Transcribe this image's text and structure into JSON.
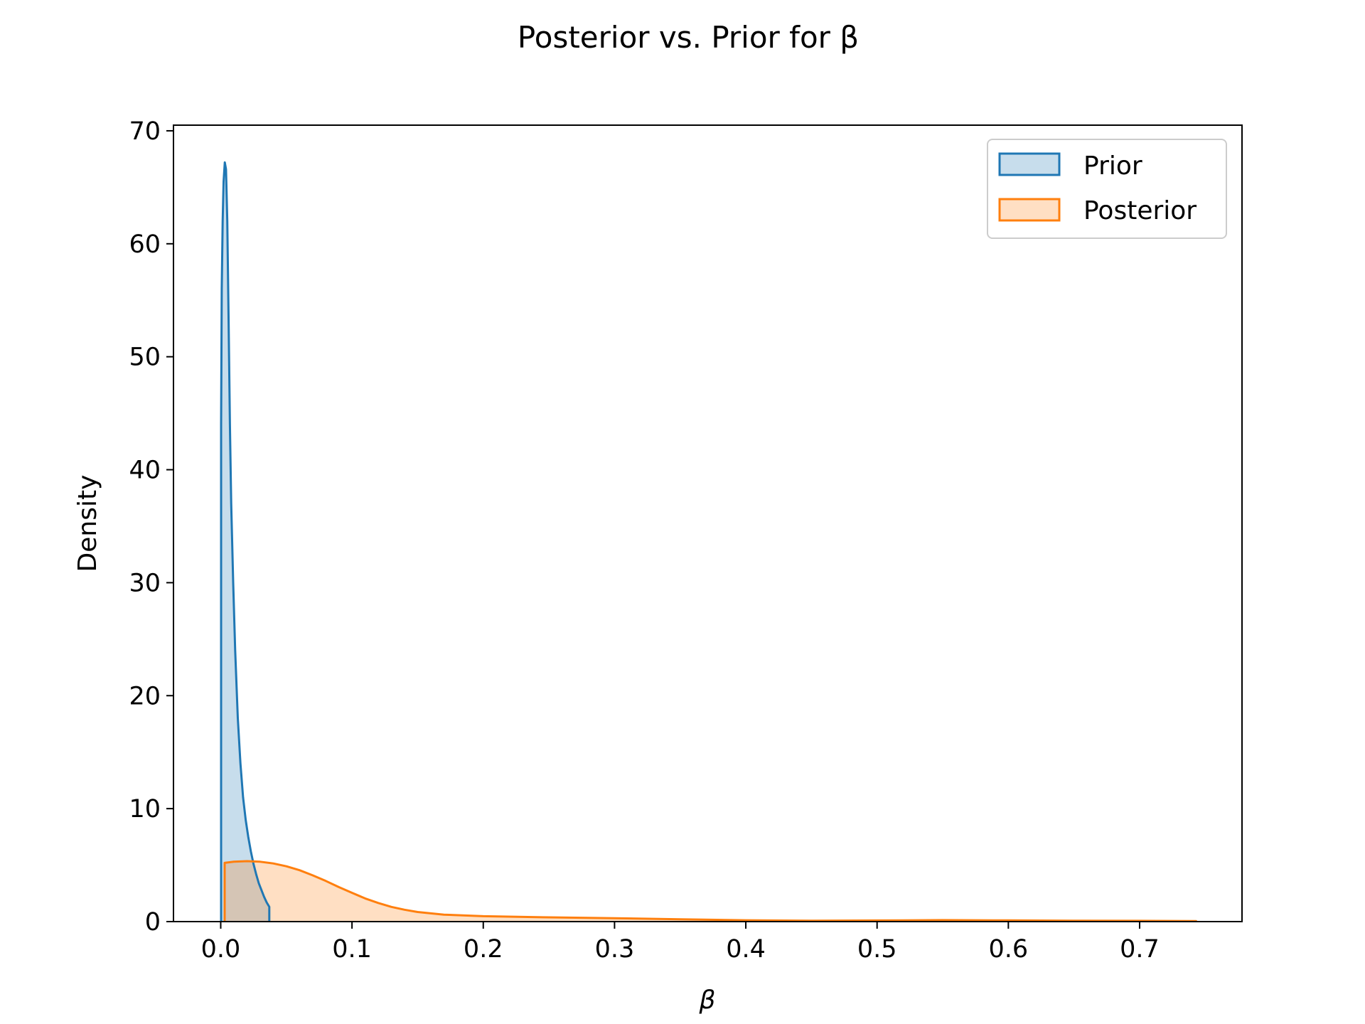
{
  "chart_data": {
    "type": "area",
    "title": "Posterior vs. Prior for β",
    "xlabel": "β",
    "ylabel": "Density",
    "xlim": [
      -0.036,
      0.778
    ],
    "ylim": [
      0,
      70.5
    ],
    "x_ticks": [
      "0.0",
      "0.1",
      "0.2",
      "0.3",
      "0.4",
      "0.5",
      "0.6",
      "0.7"
    ],
    "y_ticks": [
      "0",
      "10",
      "20",
      "30",
      "40",
      "50",
      "60",
      "70"
    ],
    "grid": false,
    "legend_position": "top-right",
    "series": [
      {
        "name": "Prior",
        "color": "#1f77b4",
        "fill_color": "#1f77b4",
        "fill_opacity": 0.25,
        "points": [
          [
            0.0003,
            0
          ],
          [
            0.0003,
            44
          ],
          [
            0.0008,
            56
          ],
          [
            0.0015,
            62
          ],
          [
            0.0022,
            65.5
          ],
          [
            0.0031,
            67.2
          ],
          [
            0.004,
            66.6
          ],
          [
            0.005,
            62
          ],
          [
            0.006,
            53
          ],
          [
            0.007,
            44
          ],
          [
            0.008,
            37
          ],
          [
            0.0095,
            30
          ],
          [
            0.011,
            24
          ],
          [
            0.013,
            18
          ],
          [
            0.015,
            14
          ],
          [
            0.017,
            11
          ],
          [
            0.019,
            9
          ],
          [
            0.021,
            7.5
          ],
          [
            0.023,
            6.2
          ],
          [
            0.025,
            5.1
          ],
          [
            0.027,
            4.2
          ],
          [
            0.029,
            3.4
          ],
          [
            0.031,
            2.8
          ],
          [
            0.033,
            2.2
          ],
          [
            0.035,
            1.7
          ],
          [
            0.037,
            1.3
          ],
          [
            0.037,
            0
          ]
        ]
      },
      {
        "name": "Posterior",
        "color": "#ff7f0e",
        "fill_color": "#ff7f0e",
        "fill_opacity": 0.25,
        "points": [
          [
            0.003,
            0
          ],
          [
            0.003,
            5.2
          ],
          [
            0.01,
            5.3
          ],
          [
            0.02,
            5.35
          ],
          [
            0.03,
            5.3
          ],
          [
            0.04,
            5.15
          ],
          [
            0.05,
            4.9
          ],
          [
            0.06,
            4.55
          ],
          [
            0.07,
            4.1
          ],
          [
            0.08,
            3.6
          ],
          [
            0.09,
            3.05
          ],
          [
            0.1,
            2.55
          ],
          [
            0.11,
            2.05
          ],
          [
            0.12,
            1.65
          ],
          [
            0.13,
            1.3
          ],
          [
            0.14,
            1.05
          ],
          [
            0.15,
            0.85
          ],
          [
            0.17,
            0.62
          ],
          [
            0.2,
            0.48
          ],
          [
            0.25,
            0.38
          ],
          [
            0.3,
            0.3
          ],
          [
            0.35,
            0.2
          ],
          [
            0.4,
            0.12
          ],
          [
            0.45,
            0.08
          ],
          [
            0.5,
            0.1
          ],
          [
            0.55,
            0.13
          ],
          [
            0.6,
            0.11
          ],
          [
            0.65,
            0.08
          ],
          [
            0.7,
            0.07
          ],
          [
            0.743,
            0.05
          ],
          [
            0.743,
            0
          ]
        ]
      }
    ]
  }
}
